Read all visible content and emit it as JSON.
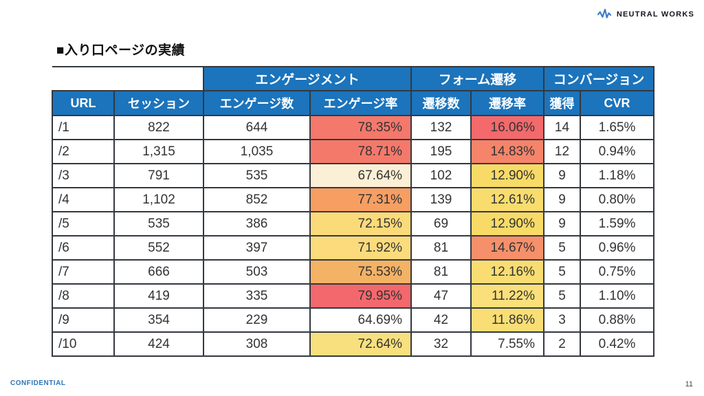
{
  "logo": {
    "text": "NEUTRAL WORKS",
    "icon": "pulse-waveform-icon",
    "icon_color": "#3d7cc9",
    "text_color": "#15151f"
  },
  "title": "■入り口ページの実績",
  "table": {
    "colors": {
      "header_bg": "#1b74bc",
      "header_text": "#ffffff",
      "border": "#33383f",
      "body_text": "#333333"
    },
    "group_headers": [
      {
        "label": "エンゲージメント"
      },
      {
        "label": "フォーム遷移"
      },
      {
        "label": "コンバージョン"
      }
    ],
    "columns": [
      "URL",
      "セッション",
      "エンゲージ数",
      "エンゲージ率",
      "遷移数",
      "遷移率",
      "獲得",
      "CVR"
    ],
    "rows": [
      {
        "url": "/1",
        "sessions": "822",
        "engage_count": "644",
        "engage_rate": "78.35%",
        "engage_rate_bg": "#f4786b",
        "transition_count": "132",
        "transition_rate": "16.06%",
        "transition_rate_bg": "#f3696c",
        "acquisitions": "14",
        "cvr": "1.65%"
      },
      {
        "url": "/2",
        "sessions": "1,315",
        "engage_count": "1,035",
        "engage_rate": "78.71%",
        "engage_rate_bg": "#f4796b",
        "transition_count": "195",
        "transition_rate": "14.83%",
        "transition_rate_bg": "#f5846a",
        "acquisitions": "12",
        "cvr": "0.94%"
      },
      {
        "url": "/3",
        "sessions": "791",
        "engage_count": "535",
        "engage_rate": "67.64%",
        "engage_rate_bg": "#fbefd5",
        "transition_count": "102",
        "transition_rate": "12.90%",
        "transition_rate_bg": "#f8da67",
        "acquisitions": "9",
        "cvr": "1.18%"
      },
      {
        "url": "/4",
        "sessions": "1,102",
        "engage_count": "852",
        "engage_rate": "77.31%",
        "engage_rate_bg": "#f79e63",
        "transition_count": "139",
        "transition_rate": "12.61%",
        "transition_rate_bg": "#f8dc6e",
        "acquisitions": "9",
        "cvr": "0.80%"
      },
      {
        "url": "/5",
        "sessions": "535",
        "engage_count": "386",
        "engage_rate": "72.15%",
        "engage_rate_bg": "#fbda79",
        "transition_count": "69",
        "transition_rate": "12.90%",
        "transition_rate_bg": "#f8da67",
        "acquisitions": "9",
        "cvr": "1.59%"
      },
      {
        "url": "/6",
        "sessions": "552",
        "engage_count": "397",
        "engage_rate": "71.92%",
        "engage_rate_bg": "#fbdb7c",
        "transition_count": "81",
        "transition_rate": "14.67%",
        "transition_rate_bg": "#f6906b",
        "acquisitions": "5",
        "cvr": "0.96%"
      },
      {
        "url": "/7",
        "sessions": "666",
        "engage_count": "503",
        "engage_rate": "75.53%",
        "engage_rate_bg": "#f4b264",
        "transition_count": "81",
        "transition_rate": "12.16%",
        "transition_rate_bg": "#f9dd72",
        "acquisitions": "5",
        "cvr": "0.75%"
      },
      {
        "url": "/8",
        "sessions": "419",
        "engage_count": "335",
        "engage_rate": "79.95%",
        "engage_rate_bg": "#f3686c",
        "transition_count": "47",
        "transition_rate": "11.22%",
        "transition_rate_bg": "#fadf7a",
        "acquisitions": "5",
        "cvr": "1.10%"
      },
      {
        "url": "/9",
        "sessions": "354",
        "engage_count": "229",
        "engage_rate": "64.69%",
        "engage_rate_bg": "#ffffff",
        "transition_count": "42",
        "transition_rate": "11.86%",
        "transition_rate_bg": "#f9de75",
        "acquisitions": "3",
        "cvr": "0.88%"
      },
      {
        "url": "/10",
        "sessions": "424",
        "engage_count": "308",
        "engage_rate": "72.64%",
        "engage_rate_bg": "#f8e07e",
        "transition_count": "32",
        "transition_rate": "7.55%",
        "transition_rate_bg": "#ffffff",
        "acquisitions": "2",
        "cvr": "0.42%"
      }
    ]
  },
  "footer": {
    "confidential": "CONFIDENTIAL",
    "page_number": "11"
  }
}
